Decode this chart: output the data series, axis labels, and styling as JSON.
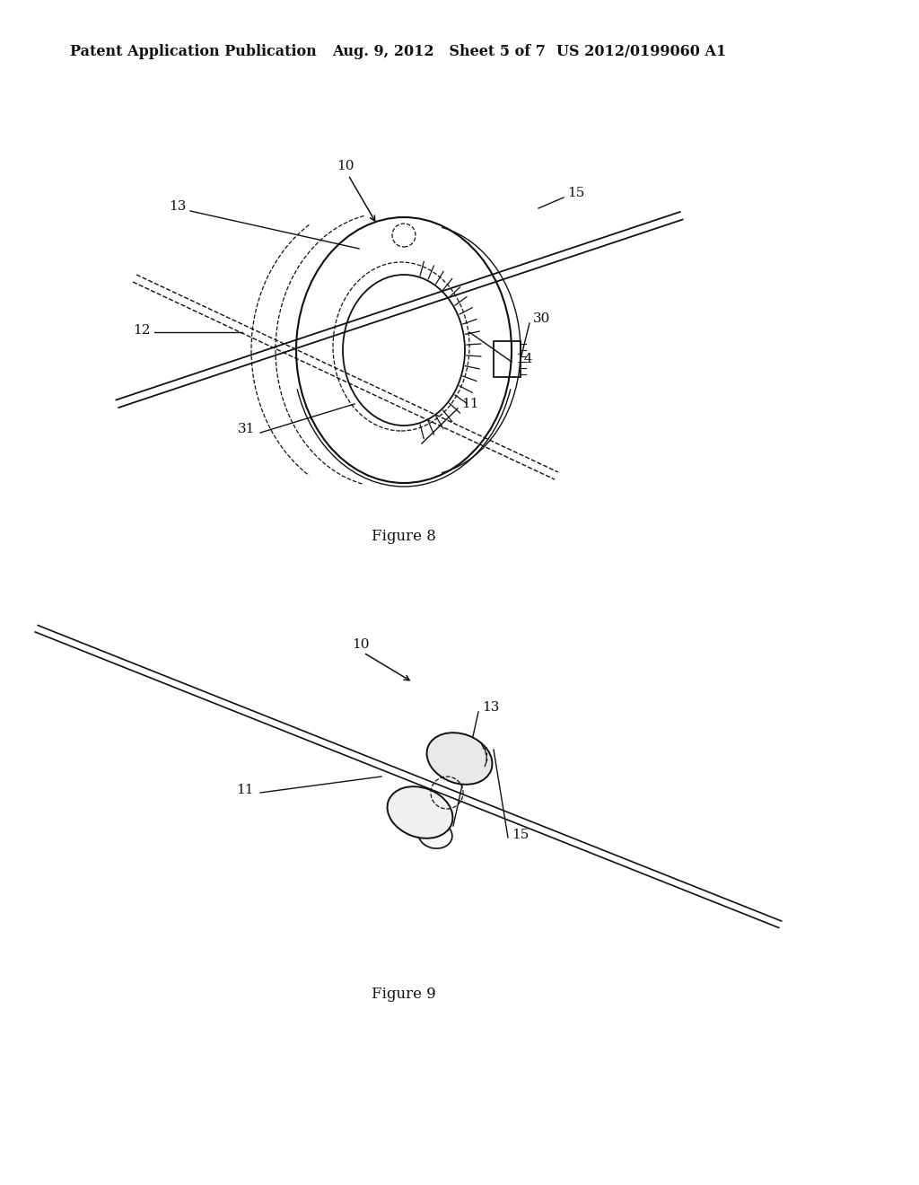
{
  "background_color": "#ffffff",
  "header_left": "Patent Application Publication",
  "header_mid": "Aug. 9, 2012   Sheet 5 of 7",
  "header_right": "US 2012/0199060 A1",
  "header_fontsize": 11.5,
  "figure8_caption": "Figure 8",
  "figure9_caption": "Figure 9",
  "label_color": "#111111",
  "line_color": "#111111"
}
